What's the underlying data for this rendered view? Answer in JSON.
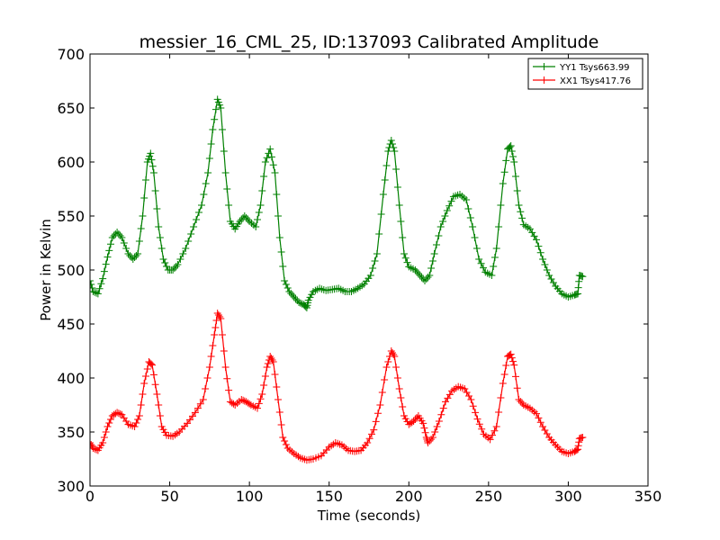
{
  "chart_data": {
    "type": "line",
    "title": "messier_16_CML_25, ID:137093 Calibrated Amplitude",
    "xlabel": "Time (seconds)",
    "ylabel": "Power in Kelvin",
    "xlim": [
      0,
      350
    ],
    "ylim": [
      300,
      700
    ],
    "xticks": [
      0,
      50,
      100,
      150,
      200,
      250,
      300,
      350
    ],
    "yticks": [
      300,
      350,
      400,
      450,
      500,
      550,
      600,
      650,
      700
    ],
    "grid": false,
    "legend_position": "top-right",
    "marker": "+",
    "series": [
      {
        "name": "YY1 Tsys663.99",
        "color": "#008000",
        "points": [
          [
            0,
            490
          ],
          [
            2,
            480
          ],
          [
            5,
            478
          ],
          [
            8,
            492
          ],
          [
            11,
            512
          ],
          [
            14,
            530
          ],
          [
            17,
            535
          ],
          [
            20,
            530
          ],
          [
            24,
            515
          ],
          [
            27,
            510
          ],
          [
            30,
            515
          ],
          [
            33,
            550
          ],
          [
            36,
            600
          ],
          [
            38,
            608
          ],
          [
            40,
            590
          ],
          [
            43,
            540
          ],
          [
            46,
            510
          ],
          [
            49,
            500
          ],
          [
            52,
            500
          ],
          [
            55,
            505
          ],
          [
            60,
            520
          ],
          [
            65,
            540
          ],
          [
            70,
            560
          ],
          [
            74,
            590
          ],
          [
            77,
            630
          ],
          [
            80,
            658
          ],
          [
            82,
            650
          ],
          [
            85,
            590
          ],
          [
            88,
            545
          ],
          [
            91,
            538
          ],
          [
            94,
            545
          ],
          [
            97,
            550
          ],
          [
            100,
            545
          ],
          [
            104,
            540
          ],
          [
            107,
            560
          ],
          [
            110,
            600
          ],
          [
            113,
            612
          ],
          [
            116,
            590
          ],
          [
            119,
            530
          ],
          [
            122,
            490
          ],
          [
            125,
            480
          ],
          [
            128,
            475
          ],
          [
            131,
            470
          ],
          [
            134,
            468
          ],
          [
            136,
            465
          ],
          [
            137,
            472
          ],
          [
            140,
            480
          ],
          [
            144,
            483
          ],
          [
            148,
            481
          ],
          [
            152,
            482
          ],
          [
            156,
            483
          ],
          [
            160,
            480
          ],
          [
            164,
            480
          ],
          [
            168,
            483
          ],
          [
            172,
            487
          ],
          [
            176,
            495
          ],
          [
            180,
            515
          ],
          [
            184,
            570
          ],
          [
            187,
            610
          ],
          [
            189,
            620
          ],
          [
            191,
            610
          ],
          [
            194,
            560
          ],
          [
            197,
            515
          ],
          [
            200,
            503
          ],
          [
            204,
            500
          ],
          [
            207,
            495
          ],
          [
            210,
            490
          ],
          [
            213,
            495
          ],
          [
            216,
            515
          ],
          [
            220,
            540
          ],
          [
            224,
            555
          ],
          [
            228,
            568
          ],
          [
            232,
            570
          ],
          [
            236,
            565
          ],
          [
            240,
            540
          ],
          [
            244,
            510
          ],
          [
            248,
            498
          ],
          [
            252,
            495
          ],
          [
            255,
            520
          ],
          [
            259,
            580
          ],
          [
            262,
            612
          ],
          [
            264,
            615
          ],
          [
            266,
            600
          ],
          [
            269,
            560
          ],
          [
            272,
            542
          ],
          [
            276,
            538
          ],
          [
            280,
            528
          ],
          [
            284,
            510
          ],
          [
            288,
            495
          ],
          [
            292,
            485
          ],
          [
            296,
            478
          ],
          [
            300,
            475
          ],
          [
            304,
            477
          ],
          [
            306,
            478
          ],
          [
            307,
            495
          ],
          [
            309,
            494
          ]
        ]
      },
      {
        "name": "XX1 Tsys417.76",
        "color": "#ff0000",
        "points": [
          [
            0,
            340
          ],
          [
            2,
            335
          ],
          [
            5,
            333
          ],
          [
            8,
            340
          ],
          [
            11,
            355
          ],
          [
            14,
            365
          ],
          [
            17,
            368
          ],
          [
            20,
            366
          ],
          [
            24,
            357
          ],
          [
            28,
            355
          ],
          [
            31,
            365
          ],
          [
            34,
            395
          ],
          [
            37,
            415
          ],
          [
            39,
            412
          ],
          [
            42,
            385
          ],
          [
            45,
            355
          ],
          [
            48,
            347
          ],
          [
            52,
            346
          ],
          [
            56,
            350
          ],
          [
            61,
            358
          ],
          [
            66,
            368
          ],
          [
            71,
            380
          ],
          [
            75,
            410
          ],
          [
            78,
            440
          ],
          [
            80,
            460
          ],
          [
            82,
            455
          ],
          [
            85,
            410
          ],
          [
            88,
            378
          ],
          [
            91,
            375
          ],
          [
            95,
            380
          ],
          [
            98,
            378
          ],
          [
            101,
            375
          ],
          [
            105,
            372
          ],
          [
            108,
            385
          ],
          [
            111,
            410
          ],
          [
            113,
            420
          ],
          [
            115,
            415
          ],
          [
            118,
            380
          ],
          [
            121,
            345
          ],
          [
            124,
            335
          ],
          [
            128,
            330
          ],
          [
            132,
            326
          ],
          [
            136,
            324
          ],
          [
            140,
            325
          ],
          [
            145,
            328
          ],
          [
            150,
            336
          ],
          [
            154,
            340
          ],
          [
            158,
            338
          ],
          [
            162,
            333
          ],
          [
            166,
            332
          ],
          [
            170,
            333
          ],
          [
            174,
            340
          ],
          [
            178,
            352
          ],
          [
            182,
            375
          ],
          [
            186,
            410
          ],
          [
            189,
            425
          ],
          [
            191,
            420
          ],
          [
            194,
            390
          ],
          [
            197,
            365
          ],
          [
            200,
            357
          ],
          [
            203,
            360
          ],
          [
            206,
            365
          ],
          [
            209,
            358
          ],
          [
            211,
            345
          ],
          [
            212,
            340
          ],
          [
            215,
            345
          ],
          [
            219,
            360
          ],
          [
            223,
            378
          ],
          [
            227,
            388
          ],
          [
            231,
            392
          ],
          [
            235,
            390
          ],
          [
            239,
            380
          ],
          [
            243,
            362
          ],
          [
            247,
            348
          ],
          [
            251,
            343
          ],
          [
            255,
            355
          ],
          [
            259,
            395
          ],
          [
            262,
            420
          ],
          [
            264,
            422
          ],
          [
            266,
            412
          ],
          [
            269,
            380
          ],
          [
            272,
            375
          ],
          [
            276,
            372
          ],
          [
            280,
            367
          ],
          [
            284,
            355
          ],
          [
            288,
            345
          ],
          [
            292,
            338
          ],
          [
            296,
            332
          ],
          [
            300,
            330
          ],
          [
            304,
            332
          ],
          [
            306,
            334
          ],
          [
            307,
            344
          ],
          [
            309,
            345
          ]
        ]
      }
    ]
  }
}
